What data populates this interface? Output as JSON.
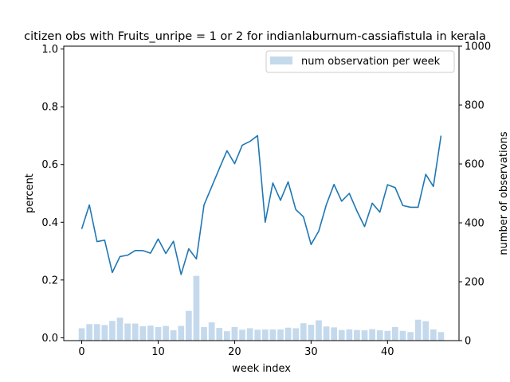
{
  "chart_data": {
    "type": "bar+line",
    "title": "citizen obs with Fruits_unripe = 1 or 2 for indianlaburnum-cassiafistula in kerala",
    "xlabel": "week index",
    "ylabel_left": "percent",
    "ylabel_right": "number of observations",
    "xlim": [
      -2.35,
      49.35
    ],
    "ylim_left": [
      -0.01,
      1.01
    ],
    "ylim_right": [
      0,
      1000
    ],
    "x_ticks": [
      0,
      10,
      20,
      30,
      40
    ],
    "y_ticks_left": [
      "0.0",
      "0.2",
      "0.4",
      "0.6",
      "0.8",
      "1.0"
    ],
    "y_ticks_right": [
      "0",
      "200",
      "400",
      "600",
      "800",
      "1000"
    ],
    "line_color": "#1f77b4",
    "bar_color": "#c4d9ec",
    "legend": {
      "position": "upper right",
      "label": "num observation per week"
    },
    "weeks": [
      0,
      1,
      2,
      3,
      4,
      5,
      6,
      7,
      8,
      9,
      10,
      11,
      12,
      13,
      14,
      15,
      16,
      17,
      18,
      19,
      20,
      21,
      22,
      23,
      24,
      25,
      26,
      27,
      28,
      29,
      30,
      31,
      32,
      33,
      34,
      35,
      36,
      37,
      38,
      39,
      40,
      41,
      42,
      43,
      44,
      45,
      46,
      47
    ],
    "percent": [
      0.377,
      0.46,
      0.333,
      0.338,
      0.226,
      0.281,
      0.286,
      0.302,
      0.302,
      0.293,
      0.342,
      0.292,
      0.334,
      0.219,
      0.308,
      0.273,
      0.46,
      0.523,
      0.586,
      0.648,
      0.603,
      0.667,
      0.68,
      0.7,
      0.4,
      0.536,
      0.476,
      0.54,
      0.444,
      0.419,
      0.323,
      0.369,
      0.461,
      0.531,
      0.473,
      0.5,
      0.439,
      0.385,
      0.466,
      0.435,
      0.53,
      0.52,
      0.458,
      0.452,
      0.452,
      0.566,
      0.524,
      0.7
    ],
    "observations": [
      42,
      56,
      56,
      53,
      67,
      78,
      58,
      58,
      49,
      51,
      46,
      50,
      35,
      50,
      101,
      220,
      46,
      62,
      43,
      32,
      46,
      37,
      42,
      37,
      38,
      38,
      38,
      44,
      42,
      59,
      54,
      69,
      48,
      45,
      36,
      38,
      36,
      35,
      39,
      35,
      33,
      46,
      33,
      29,
      71,
      66,
      38,
      29
    ]
  }
}
